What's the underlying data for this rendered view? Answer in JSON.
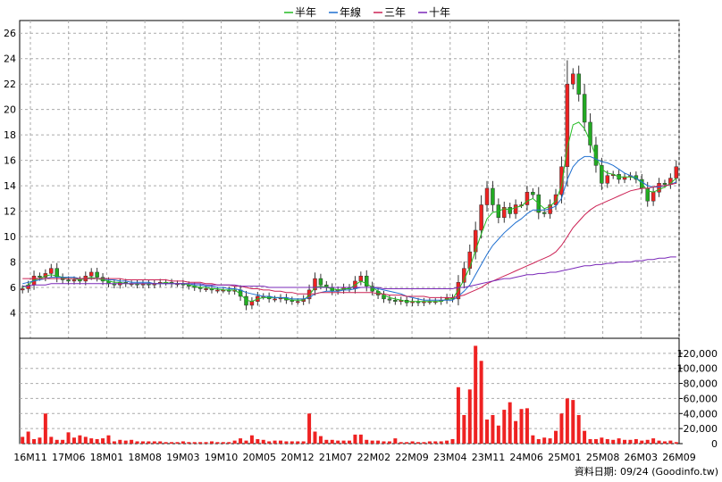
{
  "footer": "資料日期: 09/24  (Goodinfo.tw)",
  "legend": [
    {
      "label": "半年",
      "color": "#22bb22"
    },
    {
      "label": "年線",
      "color": "#1e6fd0"
    },
    {
      "label": "三年",
      "color": "#cc2255"
    },
    {
      "label": "十年",
      "color": "#7a28b8"
    }
  ],
  "chart_data": {
    "type": "candlestick",
    "up_color": "#ee2222",
    "down_color": "#22aa22",
    "volume_color": "#ee2222",
    "grid": true,
    "price_axis": {
      "ticks": [
        4,
        6,
        8,
        10,
        12,
        14,
        16,
        18,
        20,
        22,
        24,
        26
      ],
      "range": [
        2.0,
        27.0
      ]
    },
    "volume_axis": {
      "ticks": [
        "0",
        "20,000",
        "40,000",
        "60,000",
        "80,000",
        "100,000",
        "120,000"
      ],
      "range": [
        0,
        140000
      ]
    },
    "x_labels": [
      "16M11",
      "17M06",
      "18M01",
      "18M08",
      "19M03",
      "19M10",
      "20M05",
      "20M12",
      "21M07",
      "22M02",
      "22M09",
      "23M04",
      "23M11",
      "24M06",
      "25M01",
      "25M08",
      "26M03",
      "26M09"
    ],
    "close": [
      5.9,
      6.2,
      6.9,
      6.8,
      7.1,
      7.5,
      6.8,
      6.6,
      6.5,
      6.6,
      6.5,
      6.9,
      7.2,
      6.8,
      6.5,
      6.3,
      6.2,
      6.4,
      6.3,
      6.3,
      6.2,
      6.3,
      6.2,
      6.3,
      6.4,
      6.4,
      6.3,
      6.3,
      6.2,
      6.1,
      6.0,
      5.9,
      5.9,
      5.8,
      5.8,
      5.8,
      5.7,
      5.8,
      5.3,
      4.6,
      4.9,
      5.3,
      5.3,
      5.1,
      5.1,
      5.2,
      5.0,
      4.9,
      4.9,
      5.1,
      5.8,
      6.7,
      6.2,
      6.0,
      5.7,
      5.8,
      6.0,
      5.9,
      6.5,
      6.9,
      6.1,
      5.7,
      5.4,
      5.1,
      5.0,
      4.9,
      5.0,
      4.8,
      4.9,
      4.8,
      4.9,
      4.9,
      4.9,
      5.0,
      5.2,
      5.1,
      6.4,
      7.5,
      8.8,
      10.5,
      12.5,
      13.8,
      12.5,
      11.5,
      12.3,
      11.8,
      12.5,
      12.5,
      13.5,
      13.3,
      11.9,
      11.8,
      12.5,
      13.3,
      15.5,
      22.0,
      22.8,
      21.2,
      19.0,
      17.2,
      15.6,
      14.2,
      14.8,
      14.9,
      14.5,
      14.7,
      14.8,
      14.5,
      13.8,
      12.8,
      13.5,
      14.2,
      14.1,
      14.6,
      15.5
    ],
    "volume": [
      9000,
      16000,
      6000,
      8000,
      40000,
      9000,
      5000,
      5000,
      15000,
      8000,
      11000,
      9000,
      7000,
      6000,
      7000,
      11000,
      3000,
      5000,
      4000,
      5000,
      3000,
      3000,
      3000,
      3000,
      3000,
      2000,
      2000,
      2000,
      3000,
      2000,
      2000,
      2000,
      2000,
      3000,
      2000,
      2000,
      2000,
      4000,
      7000,
      4000,
      11000,
      6000,
      5000,
      3000,
      4000,
      4000,
      3000,
      3000,
      3000,
      3000,
      40000,
      16000,
      10000,
      5000,
      5000,
      4000,
      4000,
      4000,
      12000,
      12000,
      5000,
      4000,
      4000,
      3000,
      3000,
      7000,
      2000,
      2000,
      3000,
      2000,
      2000,
      3000,
      3000,
      3000,
      4000,
      6000,
      75000,
      38000,
      72000,
      130000,
      110000,
      32000,
      38000,
      24000,
      45000,
      55000,
      30000,
      46000,
      47000,
      11000,
      6000,
      8000,
      7000,
      17000,
      40000,
      60000,
      58000,
      38000,
      17000,
      6000,
      6000,
      8000,
      6000,
      5000,
      7000,
      5000,
      5000,
      6000,
      4000,
      5000,
      7000,
      4000,
      3000,
      4000,
      2000
    ],
    "series": [
      {
        "name": "半年",
        "values": [
          6.0,
          6.2,
          6.6,
          6.7,
          6.9,
          7.0,
          6.9,
          6.8,
          6.7,
          6.7,
          6.6,
          6.7,
          6.8,
          6.7,
          6.6,
          6.5,
          6.4,
          6.4,
          6.3,
          6.3,
          6.3,
          6.3,
          6.3,
          6.3,
          6.3,
          6.4,
          6.3,
          6.3,
          6.3,
          6.2,
          6.1,
          6.0,
          6.0,
          5.9,
          5.9,
          5.8,
          5.8,
          5.8,
          5.5,
          5.0,
          4.9,
          5.1,
          5.2,
          5.2,
          5.2,
          5.2,
          5.1,
          5.0,
          5.0,
          5.0,
          5.4,
          6.0,
          6.1,
          6.0,
          5.9,
          5.8,
          5.9,
          5.9,
          6.2,
          6.5,
          6.3,
          6.0,
          5.7,
          5.4,
          5.2,
          5.1,
          5.0,
          4.9,
          4.9,
          4.9,
          4.9,
          4.9,
          4.9,
          4.9,
          5.1,
          5.1,
          5.8,
          6.6,
          7.6,
          8.9,
          10.2,
          11.4,
          11.9,
          12.0,
          12.2,
          12.1,
          12.3,
          12.4,
          12.8,
          13.0,
          12.6,
          12.2,
          12.4,
          12.8,
          14.0,
          17.0,
          18.8,
          19.0,
          18.5,
          17.5,
          16.3,
          15.3,
          15.0,
          14.9,
          14.7,
          14.7,
          14.7,
          14.6,
          14.2,
          13.6,
          13.5,
          13.7,
          13.9,
          14.2,
          14.6
        ]
      },
      {
        "name": "年線",
        "values": [
          6.3,
          6.4,
          6.5,
          6.6,
          6.7,
          6.8,
          6.8,
          6.8,
          6.8,
          6.8,
          6.7,
          6.7,
          6.7,
          6.7,
          6.7,
          6.6,
          6.6,
          6.5,
          6.5,
          6.4,
          6.4,
          6.4,
          6.4,
          6.3,
          6.3,
          6.3,
          6.3,
          6.3,
          6.3,
          6.3,
          6.2,
          6.2,
          6.1,
          6.1,
          6.0,
          6.0,
          5.9,
          5.9,
          5.8,
          5.6,
          5.5,
          5.4,
          5.3,
          5.3,
          5.2,
          5.2,
          5.2,
          5.1,
          5.1,
          5.1,
          5.2,
          5.5,
          5.6,
          5.7,
          5.7,
          5.7,
          5.8,
          5.8,
          5.9,
          6.0,
          6.0,
          6.0,
          5.9,
          5.8,
          5.7,
          5.6,
          5.5,
          5.3,
          5.2,
          5.1,
          5.0,
          5.0,
          5.0,
          5.0,
          5.0,
          5.0,
          5.3,
          5.7,
          6.2,
          7.0,
          7.8,
          8.6,
          9.3,
          9.8,
          10.3,
          10.7,
          11.1,
          11.4,
          11.8,
          12.1,
          12.1,
          12.1,
          12.2,
          12.4,
          13.0,
          14.5,
          15.5,
          16.0,
          16.3,
          16.3,
          16.1,
          15.9,
          15.8,
          15.6,
          15.3,
          15.0,
          14.8,
          14.6,
          14.3,
          14.0,
          13.9,
          13.9,
          14.0,
          14.1,
          14.3
        ]
      },
      {
        "name": "三年",
        "values": [
          6.7,
          6.7,
          6.7,
          6.7,
          6.7,
          6.7,
          6.7,
          6.7,
          6.7,
          6.7,
          6.7,
          6.7,
          6.7,
          6.7,
          6.7,
          6.7,
          6.7,
          6.7,
          6.6,
          6.6,
          6.6,
          6.6,
          6.6,
          6.6,
          6.6,
          6.6,
          6.5,
          6.5,
          6.5,
          6.4,
          6.4,
          6.4,
          6.3,
          6.3,
          6.2,
          6.2,
          6.2,
          6.1,
          6.1,
          6.0,
          5.9,
          5.9,
          5.8,
          5.8,
          5.7,
          5.7,
          5.6,
          5.6,
          5.5,
          5.5,
          5.5,
          5.5,
          5.6,
          5.6,
          5.6,
          5.6,
          5.6,
          5.6,
          5.6,
          5.6,
          5.6,
          5.6,
          5.5,
          5.5,
          5.4,
          5.4,
          5.4,
          5.3,
          5.3,
          5.3,
          5.3,
          5.2,
          5.2,
          5.2,
          5.2,
          5.2,
          5.3,
          5.4,
          5.6,
          5.8,
          6.0,
          6.3,
          6.5,
          6.7,
          6.9,
          7.1,
          7.3,
          7.5,
          7.7,
          7.9,
          8.1,
          8.3,
          8.5,
          8.8,
          9.3,
          10.0,
          10.7,
          11.2,
          11.7,
          12.1,
          12.4,
          12.6,
          12.8,
          13.0,
          13.2,
          13.4,
          13.6,
          13.7,
          13.8,
          13.8,
          13.9,
          14.0,
          14.0,
          14.1,
          14.2
        ]
      },
      {
        "name": "十年",
        "values": [
          6.1,
          6.1,
          6.2,
          6.2,
          6.2,
          6.3,
          6.3,
          6.3,
          6.3,
          6.3,
          6.3,
          6.3,
          6.3,
          6.3,
          6.3,
          6.3,
          6.3,
          6.3,
          6.3,
          6.3,
          6.3,
          6.3,
          6.3,
          6.3,
          6.3,
          6.3,
          6.3,
          6.3,
          6.3,
          6.3,
          6.3,
          6.3,
          6.2,
          6.2,
          6.2,
          6.2,
          6.2,
          6.2,
          6.1,
          6.1,
          6.1,
          6.1,
          6.1,
          6.0,
          6.0,
          6.0,
          6.0,
          6.0,
          6.0,
          6.0,
          6.0,
          6.0,
          6.0,
          6.0,
          6.0,
          6.0,
          6.0,
          6.0,
          6.0,
          6.0,
          6.0,
          6.0,
          6.0,
          5.9,
          5.9,
          5.9,
          5.9,
          5.9,
          5.9,
          5.9,
          5.9,
          5.9,
          5.9,
          5.9,
          5.9,
          5.9,
          6.0,
          6.0,
          6.1,
          6.2,
          6.3,
          6.4,
          6.5,
          6.6,
          6.7,
          6.7,
          6.8,
          6.9,
          7.0,
          7.0,
          7.1,
          7.1,
          7.2,
          7.2,
          7.3,
          7.4,
          7.5,
          7.6,
          7.7,
          7.7,
          7.8,
          7.8,
          7.9,
          7.9,
          8.0,
          8.0,
          8.0,
          8.1,
          8.1,
          8.2,
          8.2,
          8.3,
          8.3,
          8.4,
          8.4
        ]
      }
    ]
  }
}
